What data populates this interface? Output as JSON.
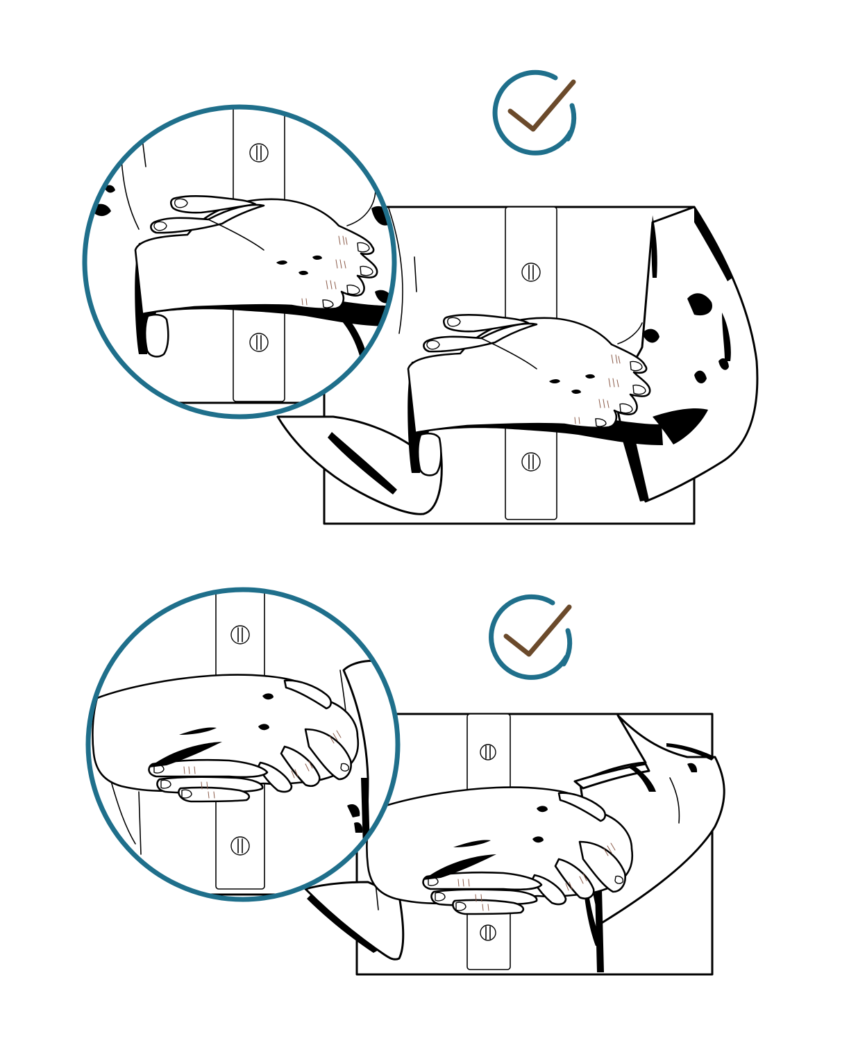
{
  "colors": {
    "ring": "#1f6f8b",
    "check": "#6b4a2b",
    "ink": "#000000",
    "background": "#ffffff",
    "knuckle_crease": "#8a5a48"
  },
  "panels": [
    {
      "name": "hand-on-forearm",
      "status_icon": "check-icon",
      "status": "correct"
    },
    {
      "name": "hand-grasping-forearm",
      "status_icon": "check-icon",
      "status": "correct"
    }
  ]
}
